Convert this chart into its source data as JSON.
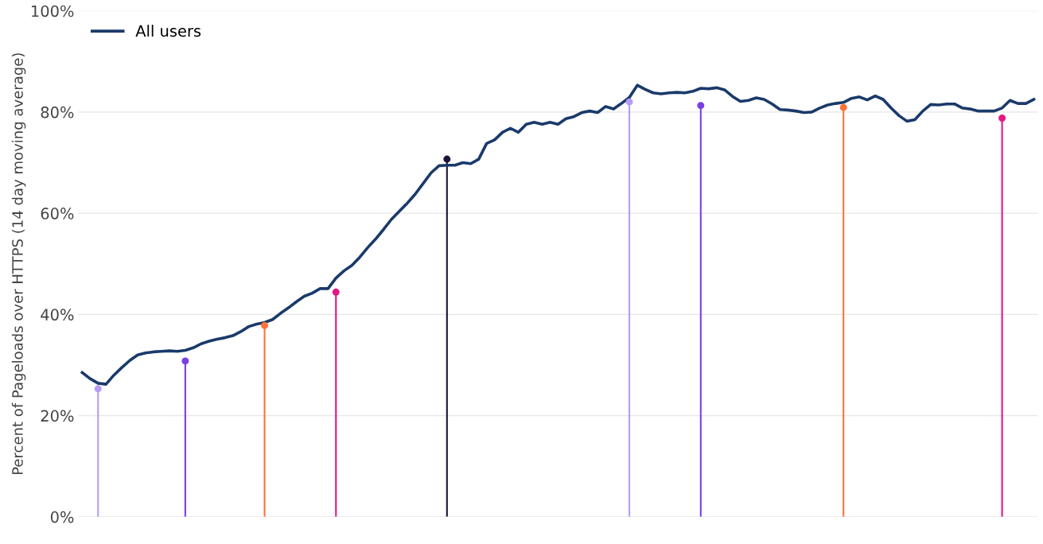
{
  "chart_data": {
    "type": "line",
    "ylabel": "Percent of Pageloads over HTTPS (14 day moving average)",
    "categories": [
      null,
      null,
      null,
      null,
      null,
      null,
      null,
      null,
      null,
      null,
      null,
      null,
      null,
      null,
      null,
      null,
      null,
      null,
      null,
      null,
      null,
      null,
      null,
      null,
      null,
      null,
      null,
      null,
      null,
      null,
      null,
      null,
      null,
      null,
      null,
      null,
      null,
      null,
      null,
      null,
      null,
      null,
      null,
      null,
      null,
      null,
      null,
      null,
      null,
      null,
      null,
      null,
      null,
      null,
      null,
      null,
      null,
      null,
      null,
      null,
      null,
      null,
      null,
      null,
      null,
      null,
      null,
      null,
      null,
      null,
      null,
      null,
      null,
      null,
      null,
      null,
      null,
      null,
      null,
      null,
      null,
      null,
      null,
      null,
      null,
      null,
      null,
      null,
      null,
      null,
      null,
      null,
      null,
      null,
      null,
      null,
      null,
      null,
      null,
      null,
      null,
      null,
      null,
      null,
      null,
      null,
      null,
      null,
      null,
      null,
      null,
      null,
      null,
      null,
      null,
      null,
      null,
      null,
      null,
      null,
      null
    ],
    "series": [
      {
        "name": "All users",
        "color": "#1a3a6b",
        "values": [
          28.5,
          27.3,
          26.4,
          26.2,
          28,
          29.5,
          30.9,
          32,
          32.4,
          32.6,
          32.7,
          32.8,
          32.7,
          32.9,
          33.4,
          34.2,
          34.7,
          35.1,
          35.4,
          35.8,
          36.6,
          37.6,
          38.1,
          38.4,
          39,
          40.2,
          41.3,
          42.5,
          43.6,
          44.2,
          45.1,
          45.1,
          47.2,
          48.6,
          49.7,
          51.3,
          53.2,
          54.9,
          56.8,
          58.8,
          60.4,
          62,
          63.8,
          65.9,
          68,
          69.4,
          69.5,
          69.5,
          70,
          69.8,
          70.7,
          73.8,
          74.5,
          76,
          76.8,
          76,
          77.6,
          78,
          77.6,
          78,
          77.6,
          78.7,
          79.1,
          79.9,
          80.2,
          79.9,
          81.1,
          80.6,
          81.7,
          82.9,
          85.3,
          84.5,
          83.8,
          83.6,
          83.8,
          83.9,
          83.8,
          84.1,
          84.7,
          84.6,
          84.8,
          84.4,
          83.1,
          82.1,
          82.3,
          82.8,
          82.5,
          81.6,
          80.5,
          80.4,
          80.2,
          79.9,
          80,
          80.8,
          81.4,
          81.7,
          81.9,
          82.7,
          83,
          82.4,
          83.2,
          82.5,
          80.8,
          79.3,
          78.2,
          78.5,
          80.2,
          81.5,
          81.4,
          81.6,
          81.6,
          80.8,
          80.6,
          80.2,
          80.2,
          80.2,
          80.8,
          82.3,
          81.7,
          81.7,
          82.5
        ]
      },
      {
        "type": "lollipop",
        "colors": [
          null,
          null,
          "#b79cf5",
          null,
          null,
          null,
          null,
          null,
          null,
          null,
          null,
          null,
          null,
          "#7b3fe4",
          null,
          null,
          null,
          null,
          null,
          null,
          null,
          null,
          null,
          "#ff7139",
          null,
          null,
          null,
          null,
          null,
          null,
          null,
          null,
          "#e31587",
          null,
          null,
          null,
          null,
          null,
          null,
          null,
          null,
          null,
          null,
          null,
          null,
          null,
          "#20123a",
          null,
          null,
          null,
          null,
          null,
          null,
          null,
          null,
          null,
          null,
          null,
          null,
          null,
          null,
          null,
          null,
          null,
          null,
          null,
          null,
          null,
          null,
          "#b79cf5",
          null,
          null,
          null,
          null,
          null,
          null,
          null,
          null,
          "#7b3fe4",
          null,
          null,
          null,
          null,
          null,
          null,
          null,
          null,
          null,
          null,
          null,
          null,
          null,
          null,
          null,
          null,
          null,
          "#ff7139",
          null,
          null,
          null,
          null,
          null,
          null,
          null,
          null,
          null,
          null,
          null,
          null,
          null,
          null,
          null,
          null,
          null,
          null,
          null,
          "#e31587",
          null,
          null,
          null,
          null
        ],
        "values": [
          null,
          null,
          25.3,
          null,
          null,
          null,
          null,
          null,
          null,
          null,
          null,
          null,
          null,
          30.8,
          null,
          null,
          null,
          null,
          null,
          null,
          null,
          null,
          null,
          37.8,
          null,
          null,
          null,
          null,
          null,
          null,
          null,
          null,
          44.4,
          null,
          null,
          null,
          null,
          null,
          null,
          null,
          null,
          null,
          null,
          null,
          null,
          null,
          70.7,
          null,
          null,
          null,
          null,
          null,
          null,
          null,
          null,
          null,
          null,
          null,
          null,
          null,
          null,
          null,
          null,
          null,
          null,
          null,
          null,
          null,
          null,
          82,
          null,
          null,
          null,
          null,
          null,
          null,
          null,
          null,
          81.3,
          null,
          null,
          null,
          null,
          null,
          null,
          null,
          null,
          null,
          null,
          null,
          null,
          null,
          null,
          null,
          null,
          null,
          80.9,
          null,
          null,
          null,
          null,
          null,
          null,
          null,
          null,
          null,
          null,
          null,
          null,
          null,
          null,
          null,
          null,
          null,
          null,
          null,
          78.8,
          null,
          null,
          null,
          null
        ]
      }
    ],
    "ylim": [
      0,
      100
    ],
    "yticks": [
      {
        "value": 0,
        "label": "0%"
      },
      {
        "value": 20,
        "label": "20%"
      },
      {
        "value": 40,
        "label": "40%"
      },
      {
        "value": 60,
        "label": "60%"
      },
      {
        "value": 80,
        "label": "80%"
      },
      {
        "value": 100,
        "label": "100%"
      }
    ],
    "grid": "y",
    "legend": "top left",
    "marker": "none",
    "line_style": "solid"
  }
}
